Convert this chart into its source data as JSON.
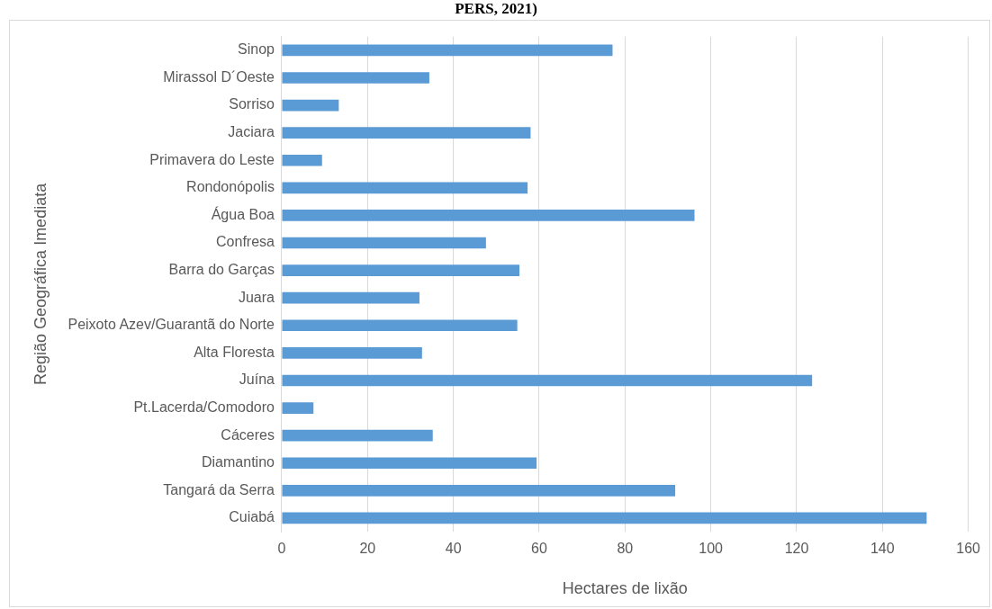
{
  "chart_data": {
    "type": "bar",
    "orientation": "horizontal",
    "title": "PERS, 2021)",
    "xlabel": "Hectares de lixão",
    "ylabel": "Região Geográfica Imediata",
    "categories": [
      "Sinop",
      "Mirassol D´Oeste",
      "Sorriso",
      "Jaciara",
      "Primavera do Leste",
      "Rondonópolis",
      "Água Boa",
      "Confresa",
      "Barra do Garças",
      "Juara",
      "Peixoto Azev/Guarantã do Norte",
      "Alta Floresta",
      "Juína",
      "Pt.Lacerda/Comodoro",
      "Cáceres",
      "Diamantino",
      "Tangará da Serra",
      "Cuiabá"
    ],
    "values": [
      77.1,
      34.4,
      13.3,
      58,
      9.4,
      57.3,
      96.2,
      47.6,
      55.4,
      32.1,
      54.9,
      32.7,
      123.6,
      7.4,
      35.2,
      59.4,
      91.7,
      150.3
    ],
    "color": "#5b9bd5",
    "xlim": [
      0,
      160
    ],
    "xticks": [
      0,
      20,
      40,
      60,
      80,
      100,
      120,
      140,
      160
    ],
    "grid": "x",
    "legend": false
  }
}
